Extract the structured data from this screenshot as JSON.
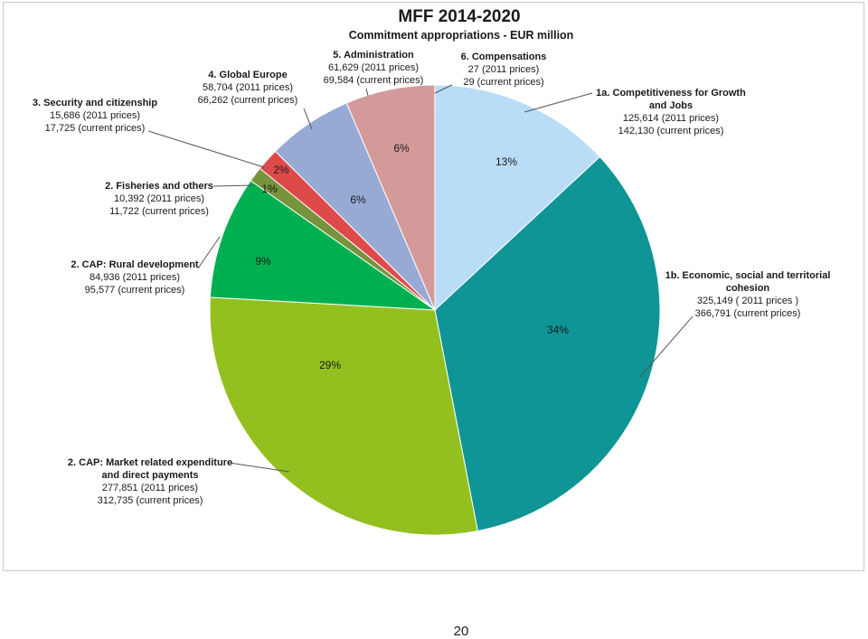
{
  "page_number": "20",
  "chart_data": {
    "type": "pie",
    "title": "MFF 2014-2020",
    "subtitle": "Commitment appropriations - EUR million",
    "slices": [
      {
        "key": "s1a",
        "label": "1a. Competitiveness for Growth and Jobs",
        "label_lines": [
          "1a. Competitiveness for Growth",
          "and Jobs"
        ],
        "value_2011": 125614,
        "value_current": 142130,
        "value_lines": [
          "125,614 (2011 prices)",
          "142,130  (current prices)"
        ],
        "percent_label": "13%",
        "color": "#b9dcf7"
      },
      {
        "key": "s1b",
        "label": "1b. Economic, social and territorial cohesion",
        "label_lines": [
          "1b. Economic, social and territorial",
          "cohesion"
        ],
        "value_2011": 325149,
        "value_current": 366791,
        "value_lines": [
          "325,149 ( 2011 prices )",
          "366,791 (current prices)"
        ],
        "percent_label": "34%",
        "color": "#0f9595"
      },
      {
        "key": "s2m",
        "label": "2. CAP: Market related expenditure and direct payments",
        "label_lines": [
          "2. CAP: Market related expenditure",
          "and direct payments"
        ],
        "value_2011": 277851,
        "value_current": 312735,
        "value_lines": [
          "277,851 (2011 prices)",
          "312,735 (current prices)"
        ],
        "percent_label": "29%",
        "color": "#93c01f"
      },
      {
        "key": "s2r",
        "label": "2. CAP: Rural development",
        "label_lines": [
          "2. CAP: Rural development"
        ],
        "value_2011": 84936,
        "value_current": 95577,
        "value_lines": [
          "84,936 (2011 prices)",
          "95,577 (current prices)"
        ],
        "percent_label": "9%",
        "color": "#00b050"
      },
      {
        "key": "s2f",
        "label": "2. Fisheries and others",
        "label_lines": [
          "2. Fisheries and others"
        ],
        "value_2011": 10392,
        "value_current": 11722,
        "value_lines": [
          "10,392 (2011 prices)",
          "11,722 (current prices)"
        ],
        "percent_label": "1%",
        "color": "#77933c"
      },
      {
        "key": "s3",
        "label": "3. Security and citizenship",
        "label_lines": [
          "3. Security and citizenship"
        ],
        "value_2011": 15686,
        "value_current": 17725,
        "value_lines": [
          "15,686 (2011 prices)",
          "17,725  (current prices)"
        ],
        "percent_label": "2%",
        "color": "#de4a4a"
      },
      {
        "key": "s4",
        "label": "4. Global Europe",
        "label_lines": [
          "4. Global Europe"
        ],
        "value_2011": 58704,
        "value_current": 66262,
        "value_lines": [
          "58,704 (2011 prices)",
          "66,262  (current prices)"
        ],
        "percent_label": "6%",
        "color": "#96aad4"
      },
      {
        "key": "s5",
        "label": "5. Administration",
        "label_lines": [
          "5. Administration"
        ],
        "value_2011": 61629,
        "value_current": 69584,
        "value_lines": [
          "61,629 (2011 prices)",
          "69,584  (current prices)"
        ],
        "percent_label": "6%",
        "color": "#d49a9a"
      },
      {
        "key": "s6",
        "label": "6. Compensations",
        "label_lines": [
          "6. Compensations"
        ],
        "value_2011": 27,
        "value_current": 29,
        "value_lines": [
          "27 (2011 prices)",
          "29 (current prices)"
        ],
        "percent_label": "",
        "color": "#8fbfe6"
      }
    ]
  }
}
